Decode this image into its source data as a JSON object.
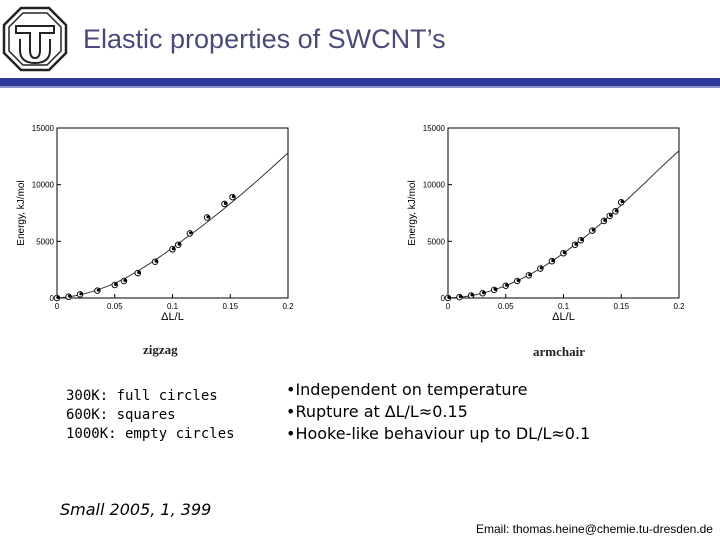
{
  "header": {
    "title": "Elastic properties of SWCNT’s",
    "logo": "university-logo-icon",
    "accent_color": "#2f3a9a"
  },
  "chart_data": [
    {
      "type": "scatter",
      "caption": "zigzag",
      "xlabel": "ΔL/L",
      "ylabel": "Energy, kJ/mol",
      "xlim": [
        0,
        0.2
      ],
      "ylim": [
        0,
        15000
      ],
      "x_ticks": [
        "0",
        "0.05",
        "0.1",
        "0.15",
        "0.2"
      ],
      "y_ticks": [
        "0",
        "5000",
        "10000",
        "15000"
      ],
      "grid": false,
      "series": [
        {
          "marker": "points",
          "x": [
            0,
            0.01,
            0.02,
            0.035,
            0.05,
            0.058,
            0.07,
            0.085,
            0.1,
            0.105,
            0.115,
            0.13,
            0.145,
            0.152
          ],
          "y": [
            0,
            120,
            320,
            650,
            1150,
            1500,
            2200,
            3200,
            4300,
            4700,
            5700,
            7100,
            8300,
            8900
          ]
        },
        {
          "marker": "fit-line",
          "x": [
            0,
            0.01,
            0.02,
            0.03,
            0.04,
            0.05,
            0.06,
            0.07,
            0.08,
            0.09,
            0.1,
            0.11,
            0.12,
            0.13,
            0.14,
            0.15,
            0.16,
            0.17,
            0.18,
            0.19,
            0.2
          ],
          "y": [
            0,
            90,
            280,
            560,
            900,
            1300,
            1800,
            2380,
            3020,
            3700,
            4420,
            5170,
            5920,
            6700,
            7500,
            8330,
            9180,
            10050,
            10950,
            11870,
            12800
          ]
        }
      ]
    },
    {
      "type": "scatter",
      "caption": "armchair",
      "xlabel": "ΔL/L",
      "ylabel": "Energy, kJ/mol",
      "xlim": [
        0,
        0.2
      ],
      "ylim": [
        0,
        15000
      ],
      "x_ticks": [
        "0",
        "0.05",
        "0.1",
        "0.15",
        "0.2"
      ],
      "y_ticks": [
        "0",
        "5000",
        "10000",
        "15000"
      ],
      "grid": false,
      "series": [
        {
          "marker": "points",
          "x": [
            0,
            0.01,
            0.02,
            0.03,
            0.04,
            0.05,
            0.06,
            0.07,
            0.08,
            0.09,
            0.1,
            0.11,
            0.115,
            0.125,
            0.135,
            0.14,
            0.145,
            0.15
          ],
          "y": [
            0,
            80,
            220,
            420,
            720,
            1080,
            1500,
            2000,
            2600,
            3250,
            3950,
            4700,
            5100,
            5950,
            6800,
            7250,
            7650,
            8450
          ]
        },
        {
          "marker": "fit-line",
          "x": [
            0,
            0.01,
            0.02,
            0.03,
            0.04,
            0.05,
            0.06,
            0.07,
            0.08,
            0.09,
            0.1,
            0.11,
            0.12,
            0.13,
            0.14,
            0.15,
            0.16,
            0.17,
            0.18,
            0.19,
            0.2
          ],
          "y": [
            0,
            60,
            200,
            420,
            720,
            1080,
            1520,
            2020,
            2600,
            3240,
            3950,
            4700,
            5500,
            6350,
            7250,
            8200,
            9150,
            10100,
            11100,
            12050,
            13000
          ]
        }
      ]
    }
  ],
  "legend_lines": [
    "300K: full circles",
    "600K: squares",
    "1000K: empty circles"
  ],
  "bullets": [
    "•Independent on temperature",
    "•Rupture at ∆L/L≈0.15",
    "•Hooke-like behaviour up to DL/L≈0.1"
  ],
  "citation": "Small 2005, 1, 399",
  "email": "Email: thomas.heine@chemie.tu-dresden.de"
}
